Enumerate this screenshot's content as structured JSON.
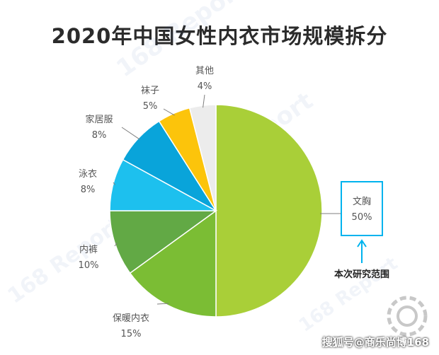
{
  "title": "2020年中国女性内衣市场规模拆分",
  "chart_data": {
    "type": "pie",
    "title": "2020年中国女性内衣市场规模拆分",
    "slices": [
      {
        "label": "文胸",
        "value": 50,
        "pct": "50%",
        "color": "#a9cf38"
      },
      {
        "label": "保暖内衣",
        "value": 15,
        "pct": "15%",
        "color": "#7bbd34"
      },
      {
        "label": "内裤",
        "value": 10,
        "pct": "10%",
        "color": "#62a945"
      },
      {
        "label": "泳衣",
        "value": 8,
        "pct": "8%",
        "color": "#1dc0ee"
      },
      {
        "label": "家居服",
        "value": 8,
        "pct": "8%",
        "color": "#09a4da"
      },
      {
        "label": "袜子",
        "value": 5,
        "pct": "5%",
        "color": "#fcc40b"
      },
      {
        "label": "其他",
        "value": 4,
        "pct": "4%",
        "color": "#ececec"
      }
    ]
  },
  "annotation": {
    "text": "本次研究范围",
    "highlight_color": "#00b3ee"
  },
  "watermark": "168 Report",
  "credit": "搜狐号@商乐尚博168"
}
